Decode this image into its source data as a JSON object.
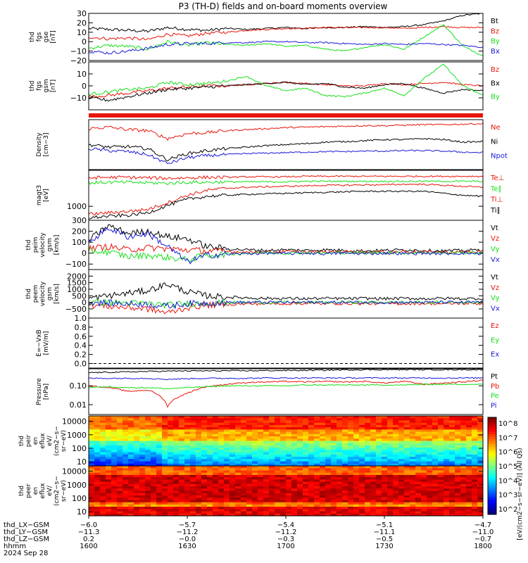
{
  "title": "P3 (TH-D) fields and on-board moments overview",
  "colors": {
    "black": "#000000",
    "red": "#e8140a",
    "green": "#16e01a",
    "blue": "#1a1ad6"
  },
  "chart_data": [
    {
      "type": "line",
      "panel": "fgs_gse",
      "ylabel_lines": [
        "thd",
        "fgs",
        "gse",
        "[nT]"
      ],
      "ylim": [
        -20,
        30
      ],
      "yticks": [
        "30",
        "20",
        "10",
        "0",
        "−10",
        "−20"
      ],
      "yticks_values": [
        30,
        20,
        10,
        0,
        -10,
        -20
      ],
      "series": [
        {
          "name": "Bt",
          "color": "black",
          "values": [
            14,
            13,
            12,
            11,
            15,
            13,
            12,
            14,
            13,
            14,
            15,
            14,
            15,
            15,
            16,
            15,
            16,
            18,
            22,
            28,
            30
          ]
        },
        {
          "name": "Bz",
          "color": "red",
          "values": [
            5,
            3,
            4,
            2,
            8,
            6,
            9,
            10,
            12,
            13,
            14,
            14,
            15,
            15,
            15,
            15,
            14,
            15,
            16,
            15,
            15
          ]
        },
        {
          "name": "By",
          "color": "green",
          "values": [
            -7,
            -4,
            -5,
            -8,
            0,
            -4,
            -1,
            -3,
            -4,
            -2,
            -5,
            -4,
            -8,
            -10,
            -6,
            -3,
            -8,
            5,
            18,
            -5,
            -15
          ]
        },
        {
          "name": "Bx",
          "color": "blue",
          "values": [
            -10,
            -12,
            -10,
            -7,
            -3,
            -2,
            -2,
            -1,
            -1,
            0,
            0,
            -1,
            -1,
            -2,
            -3,
            -2,
            -3,
            -2,
            -3,
            -4,
            -6
          ]
        }
      ]
    },
    {
      "type": "line",
      "panel": "fgs_gsm",
      "ylabel_lines": [
        "thd",
        "fgs",
        "gsm",
        "[nT]"
      ],
      "ylim": [
        -20,
        20
      ],
      "yticks": [
        "10",
        "0",
        "−10"
      ],
      "yticks_values": [
        10,
        0,
        -10
      ],
      "series": [
        {
          "name": "Bz",
          "color": "red",
          "values": [
            -9,
            -8,
            -6,
            -4,
            -2,
            -1,
            0,
            0,
            1,
            2,
            3,
            2,
            1,
            0,
            0,
            2,
            1,
            2,
            3,
            1,
            0
          ]
        },
        {
          "name": "Bx",
          "color": "black",
          "values": [
            -10,
            -12,
            -9,
            -6,
            -3,
            -2,
            -1,
            0,
            1,
            2,
            3,
            1,
            2,
            -1,
            -2,
            1,
            2,
            -2,
            -6,
            -3,
            -4
          ]
        },
        {
          "name": "By",
          "color": "green",
          "values": [
            -7,
            -5,
            -3,
            -2,
            3,
            1,
            2,
            4,
            8,
            0,
            -4,
            -2,
            -8,
            -9,
            -6,
            -2,
            -8,
            6,
            18,
            0,
            -8
          ]
        }
      ]
    },
    {
      "type": "line",
      "panel": "density",
      "ylabel_lines": [
        "Density",
        "[cm−3]"
      ],
      "ylim": [
        0,
        1
      ],
      "yticks": [],
      "yticks_values": [],
      "series": [
        {
          "name": "Ne",
          "color": "red",
          "values": [
            0.82,
            0.85,
            0.8,
            0.78,
            0.62,
            0.72,
            0.74,
            0.78,
            0.8,
            0.82,
            0.84,
            0.85,
            0.86,
            0.87,
            0.88,
            0.88,
            0.89,
            0.9,
            0.9,
            0.91,
            0.92
          ]
        },
        {
          "name": "Ni",
          "color": "black",
          "values": [
            0.5,
            0.45,
            0.46,
            0.42,
            0.2,
            0.32,
            0.38,
            0.42,
            0.45,
            0.48,
            0.5,
            0.52,
            0.55,
            0.56,
            0.58,
            0.6,
            0.6,
            0.62,
            0.6,
            0.55,
            0.56
          ]
        },
        {
          "name": "Npot",
          "color": "blue",
          "values": [
            0.42,
            0.38,
            0.36,
            0.3,
            0.12,
            0.24,
            0.28,
            0.3,
            0.32,
            0.33,
            0.34,
            0.35,
            0.36,
            0.36,
            0.37,
            0.37,
            0.38,
            0.38,
            0.37,
            0.35,
            0.34
          ]
        }
      ]
    },
    {
      "type": "line",
      "panel": "temperature",
      "ylabel_lines": [
        "magt3",
        "[eV]"
      ],
      "ylim": [
        0,
        1
      ],
      "yticks": [
        "1000"
      ],
      "yticks_values": [
        0.2
      ],
      "series": [
        {
          "name": "Te⊥",
          "color": "red",
          "values": [
            0.85,
            0.86,
            0.86,
            0.85,
            0.84,
            0.85,
            0.86,
            0.86,
            0.87,
            0.87,
            0.87,
            0.88,
            0.88,
            0.88,
            0.88,
            0.88,
            0.88,
            0.88,
            0.88,
            0.88,
            0.88
          ]
        },
        {
          "name": "Te∥",
          "color": "green",
          "values": [
            0.75,
            0.76,
            0.76,
            0.75,
            0.74,
            0.76,
            0.76,
            0.77,
            0.77,
            0.77,
            0.77,
            0.78,
            0.78,
            0.78,
            0.78,
            0.78,
            0.78,
            0.78,
            0.78,
            0.78,
            0.78
          ]
        },
        {
          "name": "Ti⊥",
          "color": "red",
          "values": [
            0.12,
            0.15,
            0.18,
            0.22,
            0.35,
            0.5,
            0.6,
            0.64,
            0.66,
            0.67,
            0.68,
            0.69,
            0.7,
            0.7,
            0.71,
            0.71,
            0.72,
            0.72,
            0.7,
            0.68,
            0.66
          ]
        },
        {
          "name": "Ti∥",
          "color": "black",
          "values": [
            0.05,
            0.08,
            0.1,
            0.15,
            0.3,
            0.42,
            0.48,
            0.5,
            0.52,
            0.53,
            0.54,
            0.55,
            0.56,
            0.57,
            0.58,
            0.58,
            0.58,
            0.58,
            0.54,
            0.5,
            0.48
          ]
        }
      ]
    },
    {
      "type": "line",
      "panel": "peim_velocity",
      "ylabel_lines": [
        "thd",
        "peim",
        "velocity",
        "gsm",
        "[km/s]"
      ],
      "ylim": [
        -150,
        300
      ],
      "yticks": [
        "300",
        "200",
        "100",
        "0",
        "−100"
      ],
      "yticks_values": [
        300,
        200,
        100,
        0,
        -100
      ],
      "series": [
        {
          "name": "Vt",
          "color": "black",
          "values": [
            120,
            250,
            180,
            200,
            150,
            130,
            60,
            40,
            30,
            25,
            30,
            25,
            30,
            25,
            20,
            25,
            30,
            25,
            20,
            25,
            30
          ]
        },
        {
          "name": "Vz",
          "color": "red",
          "values": [
            40,
            60,
            30,
            50,
            40,
            30,
            20,
            15,
            10,
            10,
            15,
            10,
            10,
            15,
            10,
            10,
            15,
            10,
            10,
            10,
            15
          ]
        },
        {
          "name": "Vy",
          "color": "green",
          "values": [
            20,
            10,
            -30,
            -20,
            -40,
            -60,
            -20,
            -10,
            0,
            5,
            0,
            5,
            0,
            5,
            0,
            5,
            0,
            5,
            0,
            5,
            0
          ]
        },
        {
          "name": "Vx",
          "color": "blue",
          "values": [
            100,
            230,
            150,
            180,
            60,
            -80,
            -20,
            -10,
            -5,
            0,
            -5,
            0,
            -5,
            0,
            -5,
            0,
            -5,
            0,
            -5,
            0,
            -5
          ]
        }
      ]
    },
    {
      "type": "line",
      "panel": "peem_velocity",
      "ylabel_lines": [
        "thd",
        "peem",
        "velocity",
        "gsm",
        "[km/s]"
      ],
      "ylim": [
        -1200,
        2500
      ],
      "yticks": [
        "2000",
        "1500",
        "1000",
        "500",
        "0",
        "−500"
      ],
      "yticks_values": [
        2000,
        1500,
        1000,
        500,
        0,
        -500
      ],
      "series": [
        {
          "name": "Vt",
          "color": "black",
          "values": [
            300,
            500,
            700,
            900,
            1400,
            800,
            500,
            400,
            350,
            300,
            300,
            280,
            300,
            280,
            300,
            280,
            300,
            280,
            300,
            280,
            300
          ]
        },
        {
          "name": "Vz",
          "color": "red",
          "values": [
            -200,
            -300,
            -400,
            -500,
            -800,
            -400,
            -200,
            -150,
            -120,
            -100,
            -100,
            -80,
            -100,
            -80,
            -100,
            -80,
            -100,
            -80,
            -100,
            -80,
            -100
          ]
        },
        {
          "name": "Vy",
          "color": "green",
          "values": [
            0,
            0,
            -50,
            -100,
            -200,
            -100,
            -50,
            -20,
            0,
            0,
            0,
            0,
            0,
            0,
            0,
            0,
            0,
            0,
            0,
            0,
            0
          ]
        },
        {
          "name": "Vx",
          "color": "blue",
          "values": [
            0,
            -50,
            -100,
            -150,
            -300,
            -100,
            -50,
            0,
            0,
            0,
            0,
            0,
            0,
            0,
            0,
            0,
            0,
            0,
            0,
            0,
            0
          ]
        }
      ]
    },
    {
      "type": "line",
      "panel": "efield",
      "ylabel_lines": [
        "E=−VxB",
        "[mV/m]"
      ],
      "ylim": [
        -0.1,
        1.0
      ],
      "yticks": [
        "1.0",
        "0.8",
        "0.6",
        "0.4",
        "0.2",
        "0.0"
      ],
      "yticks_values": [
        1.0,
        0.8,
        0.6,
        0.4,
        0.2,
        0.0
      ],
      "series": [
        {
          "name": "Ez",
          "color": "red",
          "values": []
        },
        {
          "name": "Ey",
          "color": "green",
          "values": []
        },
        {
          "name": "Ex",
          "color": "blue",
          "values": []
        }
      ]
    },
    {
      "type": "line",
      "panel": "pressure",
      "ylabel_lines": [
        "Pressure",
        "[nPa]"
      ],
      "ylim": [
        0.003,
        0.8
      ],
      "log": true,
      "yticks": [
        "0.10",
        "0.01"
      ],
      "yticks_values": [
        0.1,
        0.01
      ],
      "series": [
        {
          "name": "Pt",
          "color": "black",
          "values": [
            0.5,
            0.52,
            0.55,
            0.58,
            0.6,
            0.62,
            0.62,
            0.63,
            0.63,
            0.64,
            0.65,
            0.66,
            0.68,
            0.7,
            0.72,
            0.72,
            0.72,
            0.72,
            0.72,
            0.72,
            0.72
          ]
        },
        {
          "name": "Pb",
          "color": "red",
          "values": [
            0.1,
            0.08,
            0.05,
            0.06,
            0.008,
            0.04,
            0.09,
            0.12,
            0.15,
            0.16,
            0.17,
            0.16,
            0.17,
            0.16,
            0.17,
            0.14,
            0.17,
            0.12,
            0.14,
            0.16,
            0.2
          ]
        },
        {
          "name": "Pe",
          "color": "green",
          "values": [
            0.08,
            0.09,
            0.08,
            0.08,
            0.07,
            0.08,
            0.09,
            0.1,
            0.1,
            0.1,
            0.1,
            0.11,
            0.11,
            0.11,
            0.11,
            0.11,
            0.11,
            0.12,
            0.12,
            0.12,
            0.12
          ]
        },
        {
          "name": "Pi",
          "color": "blue",
          "values": [
            0.25,
            0.25,
            0.25,
            0.25,
            0.22,
            0.24,
            0.25,
            0.25,
            0.25,
            0.26,
            0.26,
            0.26,
            0.26,
            0.26,
            0.26,
            0.26,
            0.26,
            0.26,
            0.26,
            0.26,
            0.26
          ]
        }
      ]
    },
    {
      "type": "heatmap",
      "panel": "peir",
      "ylabel_lines": [
        "thd",
        "peir",
        "en",
        "eflux",
        "eV/",
        "(cm2−s−",
        "sr−eV)"
      ],
      "yticks": [
        "10000",
        "1000",
        "100",
        "10"
      ],
      "yticks_values": [
        10000,
        1000,
        100,
        10
      ],
      "ylim": [
        5,
        25000
      ],
      "log": true
    },
    {
      "type": "heatmap",
      "panel": "peer",
      "ylabel_lines": [
        "thd",
        "peer",
        "en",
        "eflux",
        "eV/",
        "(cm2−s−",
        "sr−eV)"
      ],
      "yticks": [
        "10000",
        "1000",
        "100",
        "10"
      ],
      "yticks_values": [
        10000,
        1000,
        100,
        10
      ],
      "ylim": [
        5,
        25000
      ],
      "log": true
    }
  ],
  "colorbar": {
    "label": "[eV/(cm2−s−sr−eV)]",
    "top_label": "[eV/(cm2−s−sr−eV)] (All Qs)",
    "ticks": [
      "10^8",
      "10^7",
      "10^6",
      "10^5",
      "10^4",
      "10^3",
      "10^2"
    ]
  },
  "xaxis": {
    "rows": [
      {
        "label": "thd_LX−GSM",
        "values": [
          "−6.0",
          "−5.7",
          "−5.4",
          "−5.1",
          "−4.7"
        ]
      },
      {
        "label": "thd_LY−GSM",
        "values": [
          "−11.3",
          "−11.2",
          "−11.2",
          "−11.1",
          "−11.0"
        ]
      },
      {
        "label": "thd_LZ−GSM",
        "values": [
          "0.2",
          "−0.0",
          "−0.3",
          "−0.5",
          "−0.7"
        ]
      },
      {
        "label": "hhmm",
        "values": [
          "1600",
          "1630",
          "1700",
          "1730",
          "1800"
        ]
      }
    ],
    "date": "2024 Sep 28"
  }
}
